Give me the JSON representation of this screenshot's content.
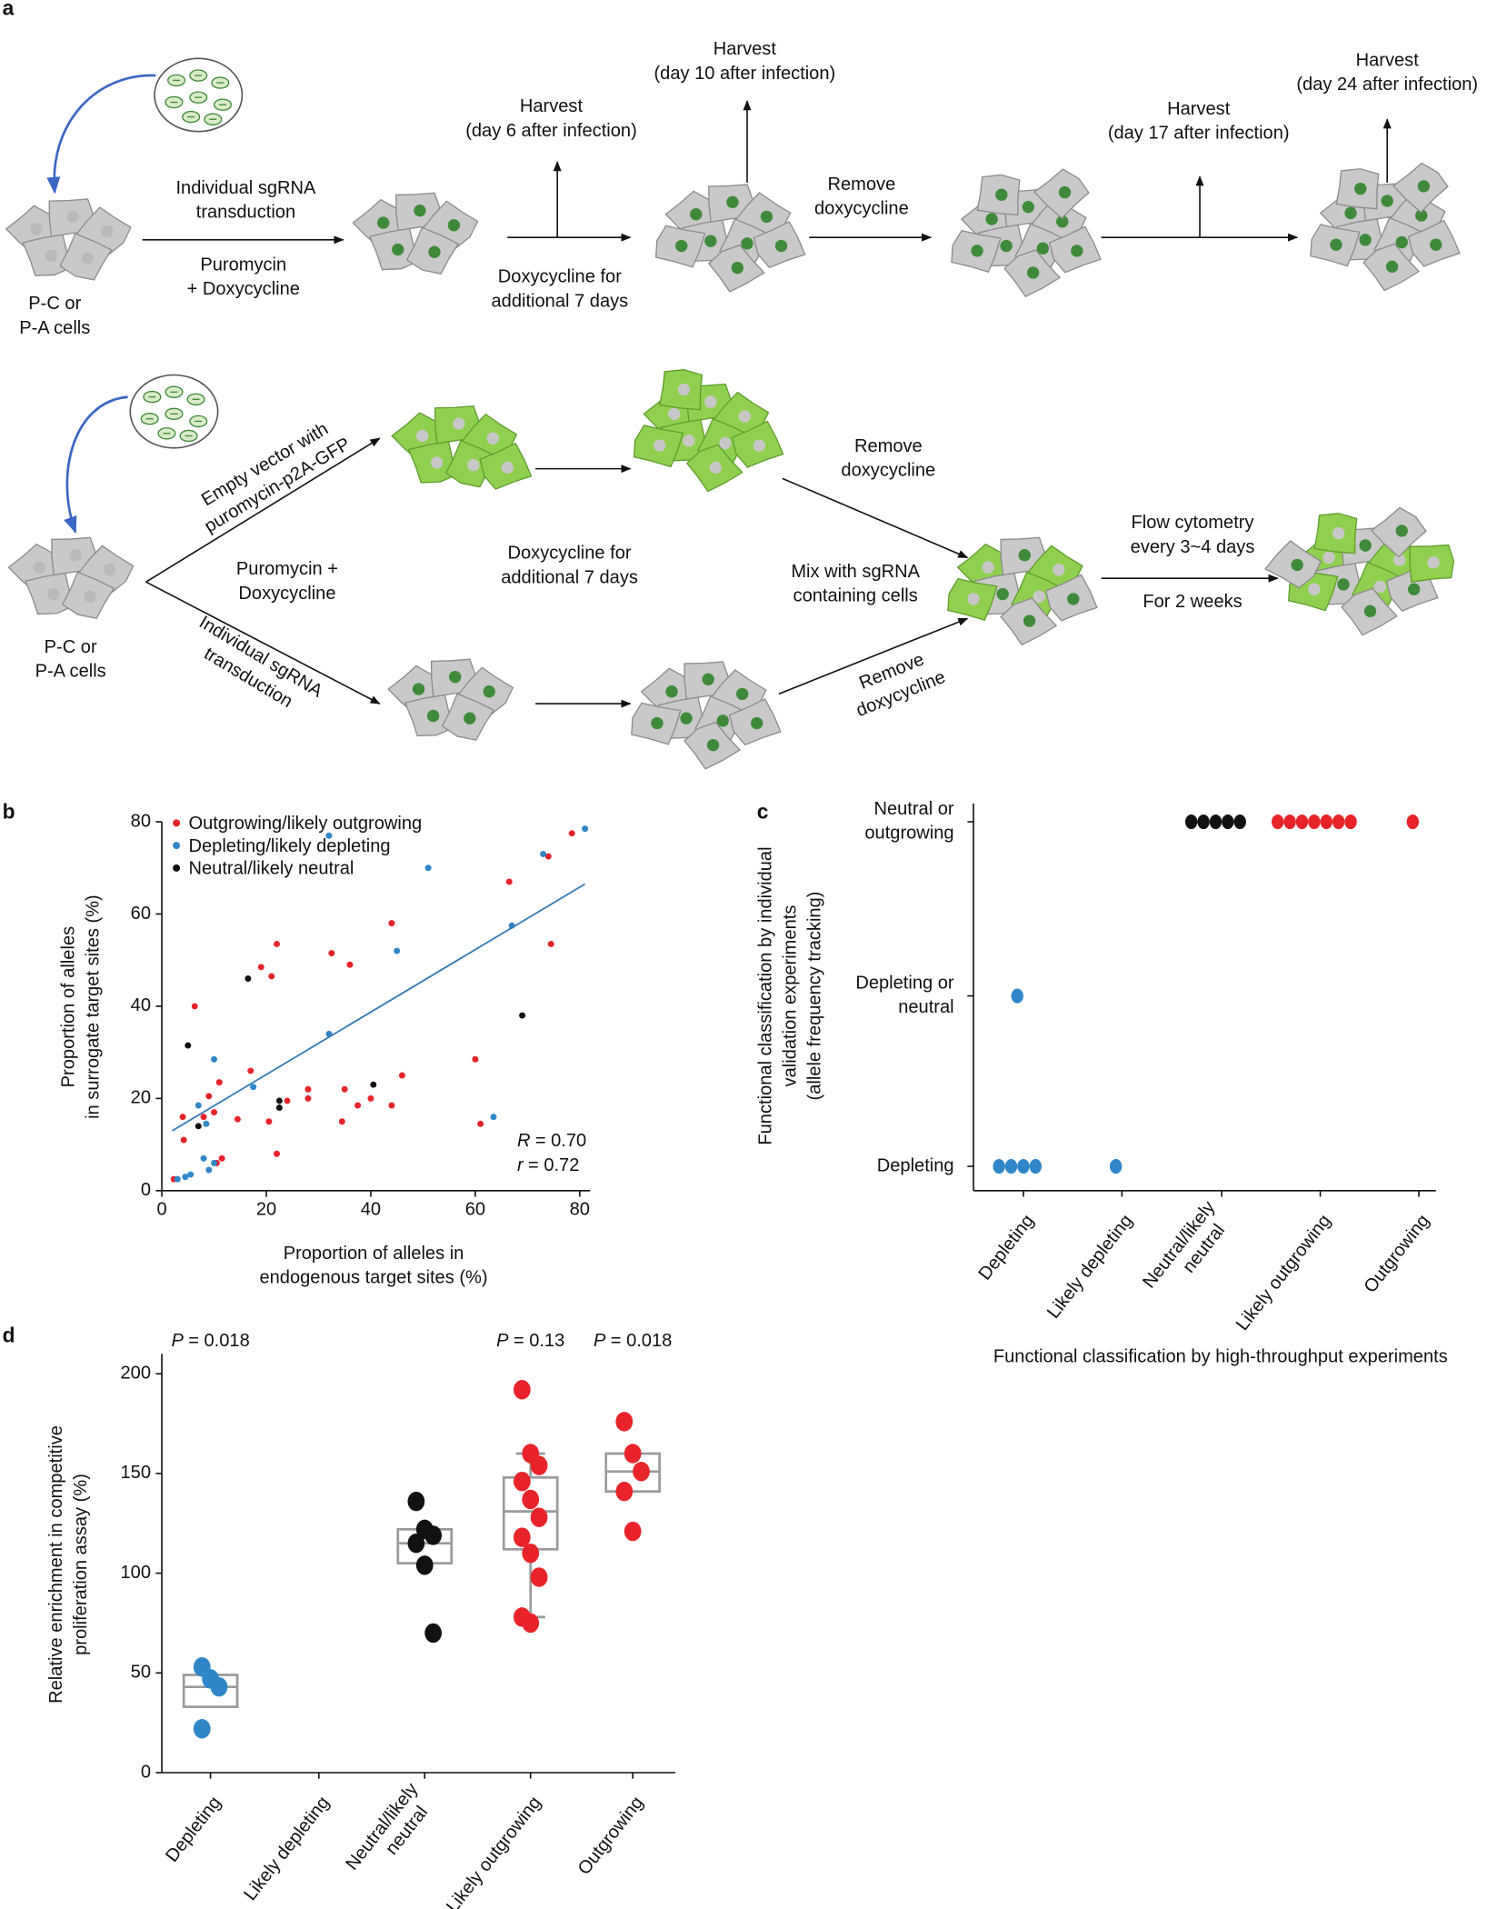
{
  "panel_a": {
    "label": "a",
    "texts": [
      {
        "lines": [
          "P-C or",
          "P-A cells"
        ]
      },
      {
        "lines": [
          "Individual sgRNA",
          "transduction"
        ]
      },
      {
        "lines": [
          "Puromycin",
          "+ Doxycycline"
        ]
      },
      {
        "lines": [
          "Harvest",
          "(day 6 after infection)"
        ]
      },
      {
        "lines": [
          "Doxycycline for",
          "additional 7 days"
        ]
      },
      {
        "lines": [
          "Harvest",
          "(day 10 after infection)"
        ]
      },
      {
        "lines": [
          "Remove",
          "doxycycline"
        ]
      },
      {
        "lines": [
          "Harvest",
          "(day 17 after infection)"
        ]
      },
      {
        "lines": [
          "Harvest",
          "(day 24 after infection)"
        ]
      },
      {
        "lines": [
          "P-C or",
          "P-A cells"
        ]
      },
      {
        "lines": [
          "Empty vector with",
          "puromycin-p2A-GFP"
        ]
      },
      {
        "lines": [
          "Puromycin +",
          "Doxycycline"
        ]
      },
      {
        "lines": [
          "Individual sgRNA",
          "transduction"
        ]
      },
      {
        "lines": [
          "Doxycycline for",
          "additional 7 days"
        ]
      },
      {
        "lines": [
          "Remove",
          "doxycycline"
        ]
      },
      {
        "lines": [
          "Mix with sgRNA",
          "containing cells"
        ]
      },
      {
        "lines": [
          "Remove",
          "doxycycline"
        ]
      },
      {
        "lines": [
          "Flow cytometry",
          "every 3~4 days"
        ]
      },
      {
        "lines": [
          "For 2 weeks"
        ]
      }
    ]
  },
  "chart_data": [
    {
      "type": "scatter",
      "panel_label": "b",
      "xlabel": [
        "Proportion of alleles in",
        "endogenous target sites (%)"
      ],
      "ylabel": [
        "Proportion of alleles",
        "in surrogate target sites (%)"
      ],
      "xlim": [
        0,
        82
      ],
      "ylim": [
        0,
        80
      ],
      "xticks": [
        0,
        20,
        40,
        60,
        80
      ],
      "yticks": [
        0,
        20,
        40,
        60,
        80
      ],
      "legend": "upper left",
      "series": [
        {
          "name": "Outgrowing/likely outgrowing",
          "color": "#e8242a",
          "x": [
            2.3,
            4,
            4.2,
            6.3,
            8,
            9,
            10,
            10.5,
            11,
            11.5,
            14.5,
            17,
            19,
            20.5,
            21,
            22,
            22,
            24,
            28,
            28,
            32.5,
            34.5,
            35,
            36,
            37.5,
            40,
            44,
            44,
            46,
            60,
            61,
            66.5,
            74,
            74.5,
            78.5
          ],
          "values": [
            2.5,
            16,
            11,
            40,
            16,
            20.5,
            17,
            6,
            23.5,
            7,
            15.5,
            26,
            48.5,
            15,
            46.5,
            53.5,
            8,
            19.5,
            22,
            20,
            51.5,
            15,
            22,
            49,
            18.5,
            20,
            18.5,
            58,
            25,
            28.5,
            14.5,
            67,
            72.5,
            53.5,
            77.5
          ]
        },
        {
          "name": "Depleting/likely depleting",
          "color": "#2f86c8",
          "x": [
            3,
            4.5,
            5.5,
            7,
            8,
            8.5,
            9,
            10,
            10,
            17.5,
            32,
            32,
            45,
            51,
            63.5,
            67,
            73,
            81
          ],
          "values": [
            2.5,
            3,
            3.5,
            18.5,
            7,
            14.5,
            4.5,
            28.5,
            6,
            22.5,
            34,
            77,
            52,
            70,
            16,
            57.5,
            73,
            78.5
          ]
        },
        {
          "name": "Neutral/likely neutral",
          "color": "#111111",
          "x": [
            5,
            7,
            16.5,
            22.5,
            22.5,
            40.5,
            69
          ],
          "values": [
            31.5,
            14,
            46,
            18,
            19.5,
            23,
            38
          ]
        }
      ],
      "fit_line": {
        "color": "#2f78b4",
        "x": [
          2,
          81
        ],
        "values": [
          13,
          66.5
        ]
      },
      "annotations": [
        {
          "symbol": "R",
          "text": "= 0.70"
        },
        {
          "symbol": "r",
          "text": "= 0.72"
        }
      ]
    },
    {
      "type": "strip",
      "panel_label": "c",
      "categories": [
        [
          "Depleting"
        ],
        [
          "Likely depleting"
        ],
        [
          "Neutral/likely",
          "neutral"
        ],
        [
          "Likely outgrowing"
        ],
        [
          "Outgrowing"
        ]
      ],
      "y_categories": [
        [
          "Depleting"
        ],
        [
          "Depleting or",
          "neutral"
        ],
        [
          "Neutral or",
          "outgrowing"
        ]
      ],
      "counts": [
        [
          4,
          1,
          0,
          0,
          0
        ],
        [
          1,
          0,
          0,
          0,
          0
        ],
        [
          0,
          0,
          5,
          7,
          1
        ]
      ],
      "colors": [
        "#2f86c8",
        "#2f86c8",
        "#111111",
        "#e8242a",
        "#e8242a"
      ],
      "xlabel": [
        "Functional classification by high-throughput experiments"
      ],
      "ylabel": [
        "Functional classification by individual",
        "validation experiments",
        "(allele frequency tracking)"
      ]
    },
    {
      "type": "box",
      "panel_label": "d",
      "categories": [
        [
          "Depleting"
        ],
        [
          "Likely depleting"
        ],
        [
          "Neutral/likely",
          "neutral"
        ],
        [
          "Likely outgrowing"
        ],
        [
          "Outgrowing"
        ]
      ],
      "ylabel": [
        "Relative enrichment in competitive",
        "proliferation assay (%)"
      ],
      "ylim": [
        0,
        210
      ],
      "yticks": [
        0,
        50,
        100,
        150,
        200
      ],
      "colors": [
        "#2f86c8",
        "#2f86c8",
        "#111111",
        "#e8242a",
        "#e8242a"
      ],
      "points": [
        [
          53,
          47,
          43,
          22
        ],
        [],
        [
          136,
          122,
          119,
          115,
          104,
          70
        ],
        [
          192,
          160,
          154,
          146,
          137,
          128,
          118,
          110,
          98,
          78,
          75
        ],
        [
          176,
          160,
          151,
          141,
          121
        ]
      ],
      "q1": [
        33,
        null,
        105,
        112,
        141
      ],
      "median": [
        43,
        null,
        115,
        131,
        151
      ],
      "q3": [
        49,
        null,
        122,
        148,
        160
      ],
      "whisker_low": [
        null,
        null,
        null,
        78,
        null
      ],
      "whisker_high": [
        null,
        null,
        null,
        160,
        null
      ],
      "p_values": [
        {
          "symbol": "P",
          "text": "= 0.018"
        },
        null,
        null,
        {
          "symbol": "P",
          "text": "= 0.13"
        },
        {
          "symbol": "P",
          "text": "= 0.018"
        }
      ]
    }
  ]
}
